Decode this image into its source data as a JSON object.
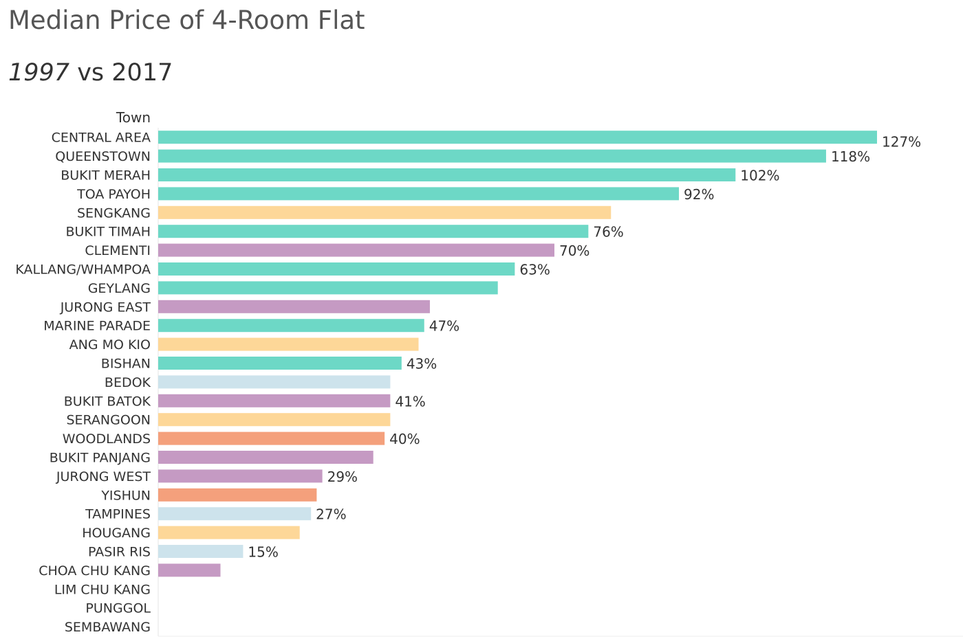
{
  "title": "Median Price of 4-Room Flat",
  "subtitle": {
    "year1": "1997",
    "rest": " vs 2017"
  },
  "colors": {
    "teal": "#6dd8c6",
    "yellow": "#fdd798",
    "purple": "#c59ac3",
    "lightblue": "#cde3ec",
    "orange": "#f4a07c",
    "text": "#333333",
    "axis": "#e6e6e6"
  },
  "chart_data": {
    "type": "bar",
    "orientation": "horizontal",
    "row_header": "Town",
    "value_unit": "%",
    "xlim": [
      0,
      127
    ],
    "categories": [
      "CENTRAL AREA",
      "QUEENSTOWN",
      "BUKIT MERAH",
      "TOA PAYOH",
      "SENGKANG",
      "BUKIT TIMAH",
      "CLEMENTI",
      "KALLANG/WHAMPOA",
      "GEYLANG",
      "JURONG EAST",
      "MARINE PARADE",
      "ANG MO KIO",
      "BISHAN",
      "BEDOK",
      "BUKIT BATOK",
      "SERANGOON",
      "WOODLANDS",
      "BUKIT PANJANG",
      "JURONG WEST",
      "YISHUN",
      "TAMPINES",
      "HOUGANG",
      "PASIR RIS",
      "CHOA CHU KANG",
      "LIM CHU KANG",
      "PUNGGOL",
      "SEMBAWANG"
    ],
    "values": [
      127,
      118,
      102,
      92,
      80,
      76,
      70,
      63,
      60,
      48,
      47,
      46,
      43,
      41,
      41,
      41,
      40,
      38,
      29,
      28,
      27,
      25,
      15,
      11,
      null,
      null,
      null
    ],
    "labels": [
      "127%",
      "118%",
      "102%",
      "92%",
      "",
      "76%",
      "70%",
      "63%",
      "",
      "",
      "47%",
      "",
      "43%",
      "",
      "41%",
      "",
      "40%",
      "",
      "29%",
      "",
      "27%",
      "",
      "15%",
      "",
      "",
      "",
      ""
    ],
    "color_groups": [
      "teal",
      "teal",
      "teal",
      "teal",
      "yellow",
      "teal",
      "purple",
      "teal",
      "teal",
      "purple",
      "teal",
      "yellow",
      "teal",
      "lightblue",
      "purple",
      "yellow",
      "orange",
      "purple",
      "purple",
      "orange",
      "lightblue",
      "yellow",
      "lightblue",
      "purple",
      "",
      "",
      ""
    ]
  }
}
